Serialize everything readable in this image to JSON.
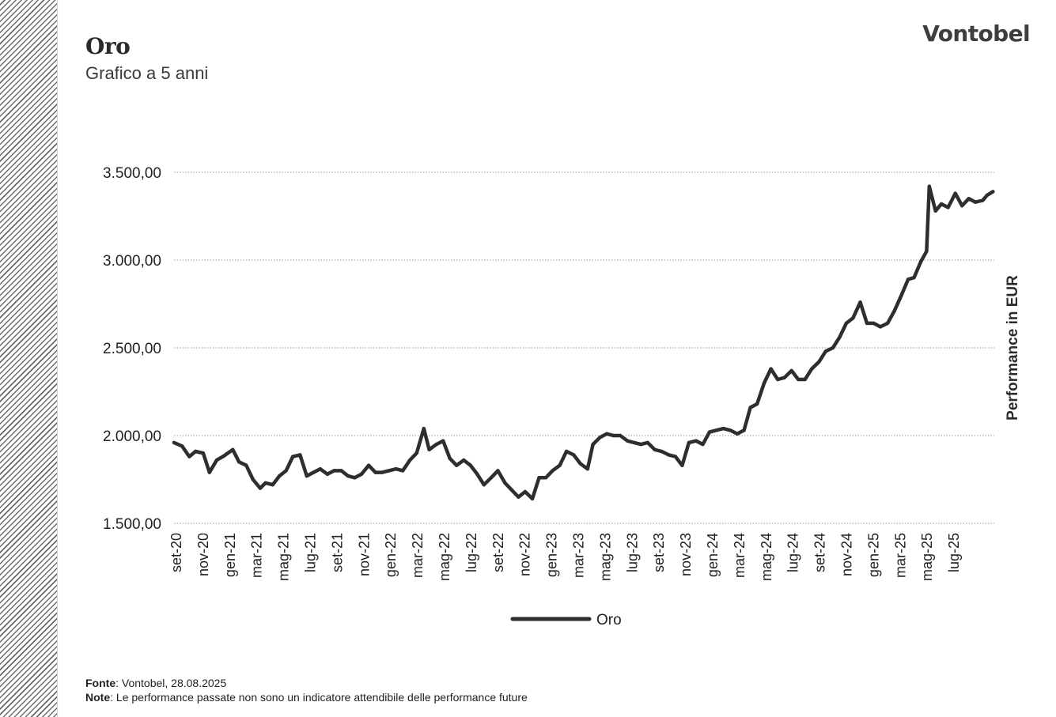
{
  "header": {
    "title": "Oro",
    "subtitle": "Grafico a 5 anni",
    "logo": "Vontobel"
  },
  "colors": {
    "line": "#2e2e2e",
    "grid": "#9a9a9a",
    "text": "#222222",
    "stripe": "#6b6b6b"
  },
  "chart_data": {
    "type": "line",
    "title": "Oro",
    "subtitle": "Grafico a 5 anni",
    "ylabel": "Performance in EUR",
    "ylim": [
      1500,
      3500
    ],
    "y_ticks": [
      1500,
      2000,
      2500,
      3000,
      3500
    ],
    "y_tick_labels": [
      "1.500,00",
      "2.000,00",
      "2.500,00",
      "3.000,00",
      "3.500,00"
    ],
    "x_tick_labels": [
      "set-20",
      "nov-20",
      "gen-21",
      "mar-21",
      "mag-21",
      "lug-21",
      "set-21",
      "nov-21",
      "gen-22",
      "mar-22",
      "mag-22",
      "lug-22",
      "set-22",
      "nov-22",
      "gen-23",
      "mar-23",
      "mag-23",
      "lug-23",
      "set-23",
      "nov-23",
      "gen-24",
      "mar-24",
      "mag-24",
      "lug-24",
      "set-24",
      "nov-24",
      "gen-25",
      "mar-25",
      "mag-25",
      "lug-25"
    ],
    "grid": "horizontal-dotted",
    "legend_position": "bottom-center",
    "x": [
      "2020-08-28",
      "2020-09-15",
      "2020-10-01",
      "2020-10-15",
      "2020-11-01",
      "2020-11-15",
      "2020-12-01",
      "2020-12-15",
      "2021-01-06",
      "2021-01-20",
      "2021-02-05",
      "2021-02-20",
      "2021-03-08",
      "2021-03-20",
      "2021-04-05",
      "2021-04-20",
      "2021-05-05",
      "2021-05-20",
      "2021-06-05",
      "2021-06-20",
      "2021-07-05",
      "2021-07-20",
      "2021-08-05",
      "2021-08-20",
      "2021-09-05",
      "2021-09-20",
      "2021-10-05",
      "2021-10-20",
      "2021-11-05",
      "2021-11-20",
      "2021-12-05",
      "2021-12-20",
      "2022-01-05",
      "2022-01-20",
      "2022-02-05",
      "2022-02-20",
      "2022-03-08",
      "2022-03-20",
      "2022-04-05",
      "2022-04-20",
      "2022-05-05",
      "2022-05-20",
      "2022-06-05",
      "2022-06-20",
      "2022-07-05",
      "2022-07-20",
      "2022-08-05",
      "2022-08-20",
      "2022-09-05",
      "2022-09-20",
      "2022-10-05",
      "2022-10-20",
      "2022-11-05",
      "2022-11-20",
      "2022-12-05",
      "2022-12-20",
      "2023-01-05",
      "2023-01-20",
      "2023-02-05",
      "2023-02-20",
      "2023-03-08",
      "2023-03-20",
      "2023-04-05",
      "2023-04-20",
      "2023-05-05",
      "2023-05-20",
      "2023-06-05",
      "2023-06-20",
      "2023-07-05",
      "2023-07-20",
      "2023-08-05",
      "2023-08-20",
      "2023-09-05",
      "2023-09-20",
      "2023-10-05",
      "2023-10-20",
      "2023-11-05",
      "2023-11-20",
      "2023-12-05",
      "2023-12-20",
      "2024-01-05",
      "2024-01-20",
      "2024-02-05",
      "2024-02-20",
      "2024-03-05",
      "2024-03-20",
      "2024-04-05",
      "2024-04-20",
      "2024-05-05",
      "2024-05-20",
      "2024-06-05",
      "2024-06-20",
      "2024-07-05",
      "2024-07-20",
      "2024-08-05",
      "2024-08-20",
      "2024-09-05",
      "2024-09-20",
      "2024-10-05",
      "2024-10-20",
      "2024-11-05",
      "2024-11-20",
      "2024-12-05",
      "2024-12-20",
      "2025-01-05",
      "2025-01-20",
      "2025-02-05",
      "2025-02-20",
      "2025-03-05",
      "2025-03-20",
      "2025-04-02",
      "2025-04-08",
      "2025-04-22",
      "2025-05-05",
      "2025-05-20",
      "2025-06-05",
      "2025-06-20",
      "2025-07-05",
      "2025-07-20",
      "2025-08-05",
      "2025-08-15",
      "2025-08-28"
    ],
    "series": [
      {
        "name": "Oro",
        "values": [
          1960,
          1940,
          1880,
          1910,
          1900,
          1790,
          1860,
          1880,
          1920,
          1850,
          1830,
          1750,
          1700,
          1730,
          1720,
          1770,
          1800,
          1880,
          1890,
          1770,
          1790,
          1810,
          1780,
          1800,
          1800,
          1770,
          1760,
          1780,
          1830,
          1790,
          1790,
          1800,
          1810,
          1800,
          1860,
          1900,
          2040,
          1920,
          1950,
          1970,
          1870,
          1830,
          1860,
          1830,
          1780,
          1720,
          1760,
          1800,
          1730,
          1690,
          1650,
          1680,
          1640,
          1760,
          1760,
          1800,
          1830,
          1910,
          1890,
          1840,
          1810,
          1950,
          1990,
          2010,
          2000,
          2000,
          1970,
          1960,
          1950,
          1960,
          1920,
          1910,
          1890,
          1880,
          1830,
          1960,
          1970,
          1950,
          2020,
          2030,
          2040,
          2030,
          2010,
          2030,
          2160,
          2180,
          2300,
          2380,
          2320,
          2330,
          2370,
          2320,
          2320,
          2380,
          2420,
          2480,
          2500,
          2560,
          2640,
          2670,
          2760,
          2640,
          2640,
          2620,
          2640,
          2710,
          2800,
          2890,
          2900,
          2990,
          3050,
          3420,
          3280,
          3320,
          3300,
          3380,
          3310,
          3350,
          3330,
          3340,
          3370,
          3390
        ]
      }
    ]
  },
  "legend": {
    "label": "Oro"
  },
  "footer": {
    "source_label": "Fonte",
    "source_text": ": Vontobel, 28.08.2025",
    "note_label": "Note",
    "note_text": ": Le performance passate non sono un indicatore attendibile delle performance future"
  }
}
